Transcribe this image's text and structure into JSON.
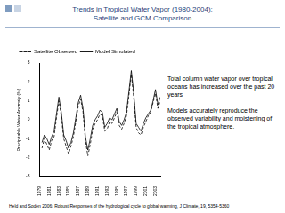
{
  "chart_data": {
    "type": "line",
    "title": "Trends in Tropical Water Vapor (1980-2004):\nSatellite and GCM Comparison",
    "y_label": "Precipitable Water Anomaly (%)",
    "annotations": [
      "Total column water vapor over tropical oceans has increased over the past 20 years",
      "Models accurately reproduce the observed variability and moistening of the tropical atmosphere.",
      "Held and Soden 2006: Robust Responses of the hydrological cycle to global warming, J Climate, 19, 5354-5360"
    ],
    "x": [
      1979.5,
      1980,
      1980.5,
      1981,
      1981.5,
      1982,
      1982.5,
      1983,
      1983.5,
      1984,
      1984.5,
      1985,
      1985.5,
      1986,
      1986.5,
      1987,
      1987.5,
      1988,
      1988.5,
      1989,
      1989.5,
      1990,
      1990.5,
      1991,
      1991.5,
      1992,
      1992.5,
      1993,
      1993.5,
      1994,
      1994.5,
      1995,
      1995.5,
      1996,
      1996.5,
      1997,
      1997.5,
      1998,
      1998.5,
      1999,
      1999.5,
      2000,
      2000.5,
      2001,
      2001.5,
      2002,
      2002.5,
      2003,
      2003.5,
      2004
    ],
    "series": [
      {
        "name": "Satellite Observed",
        "color": "#000000",
        "line_style": "dashed",
        "values": [
          -1.5,
          -1.0,
          -1.3,
          -1.6,
          -1.1,
          -0.9,
          0.1,
          1.0,
          0.2,
          -1.0,
          -1.4,
          -1.8,
          -1.4,
          -0.9,
          -0.1,
          0.7,
          1.1,
          0.4,
          -1.1,
          -1.9,
          -1.3,
          -0.5,
          -0.2,
          0.0,
          0.3,
          0.2,
          -0.6,
          -0.5,
          -0.1,
          -0.2,
          0.1,
          0.4,
          -0.3,
          -0.5,
          -0.2,
          0.2,
          1.3,
          2.4,
          1.2,
          -0.4,
          -0.7,
          -0.8,
          -0.4,
          -0.1,
          0.2,
          0.4,
          0.9,
          1.4,
          0.6,
          1.0
        ]
      },
      {
        "name": "Model Simulated",
        "color": "#000000",
        "line_style": "solid",
        "values": [
          -1.2,
          -0.8,
          -1.0,
          -1.3,
          -0.9,
          -0.6,
          0.3,
          1.2,
          0.4,
          -0.8,
          -1.1,
          -1.5,
          -1.2,
          -0.7,
          0.1,
          0.9,
          1.3,
          0.6,
          -0.9,
          -1.6,
          -1.0,
          -0.3,
          0.0,
          0.2,
          0.5,
          0.4,
          -0.4,
          -0.2,
          0.1,
          0.0,
          0.3,
          0.6,
          -0.1,
          -0.3,
          0.0,
          0.4,
          1.5,
          2.6,
          1.4,
          -0.2,
          -0.4,
          -0.6,
          -0.2,
          0.1,
          0.3,
          0.5,
          1.0,
          1.6,
          0.8,
          1.2
        ]
      }
    ],
    "xlim": [
      1979,
      2004
    ],
    "xticks": [
      1979,
      1981,
      1983,
      1985,
      1987,
      1989,
      1991,
      1993,
      1995,
      1997,
      1999,
      2001,
      2003
    ],
    "ylim": [
      -3,
      3
    ],
    "yticks": [
      -3,
      -2,
      -1,
      0,
      1,
      2,
      3
    ],
    "grid": false,
    "legend": "upper left"
  }
}
